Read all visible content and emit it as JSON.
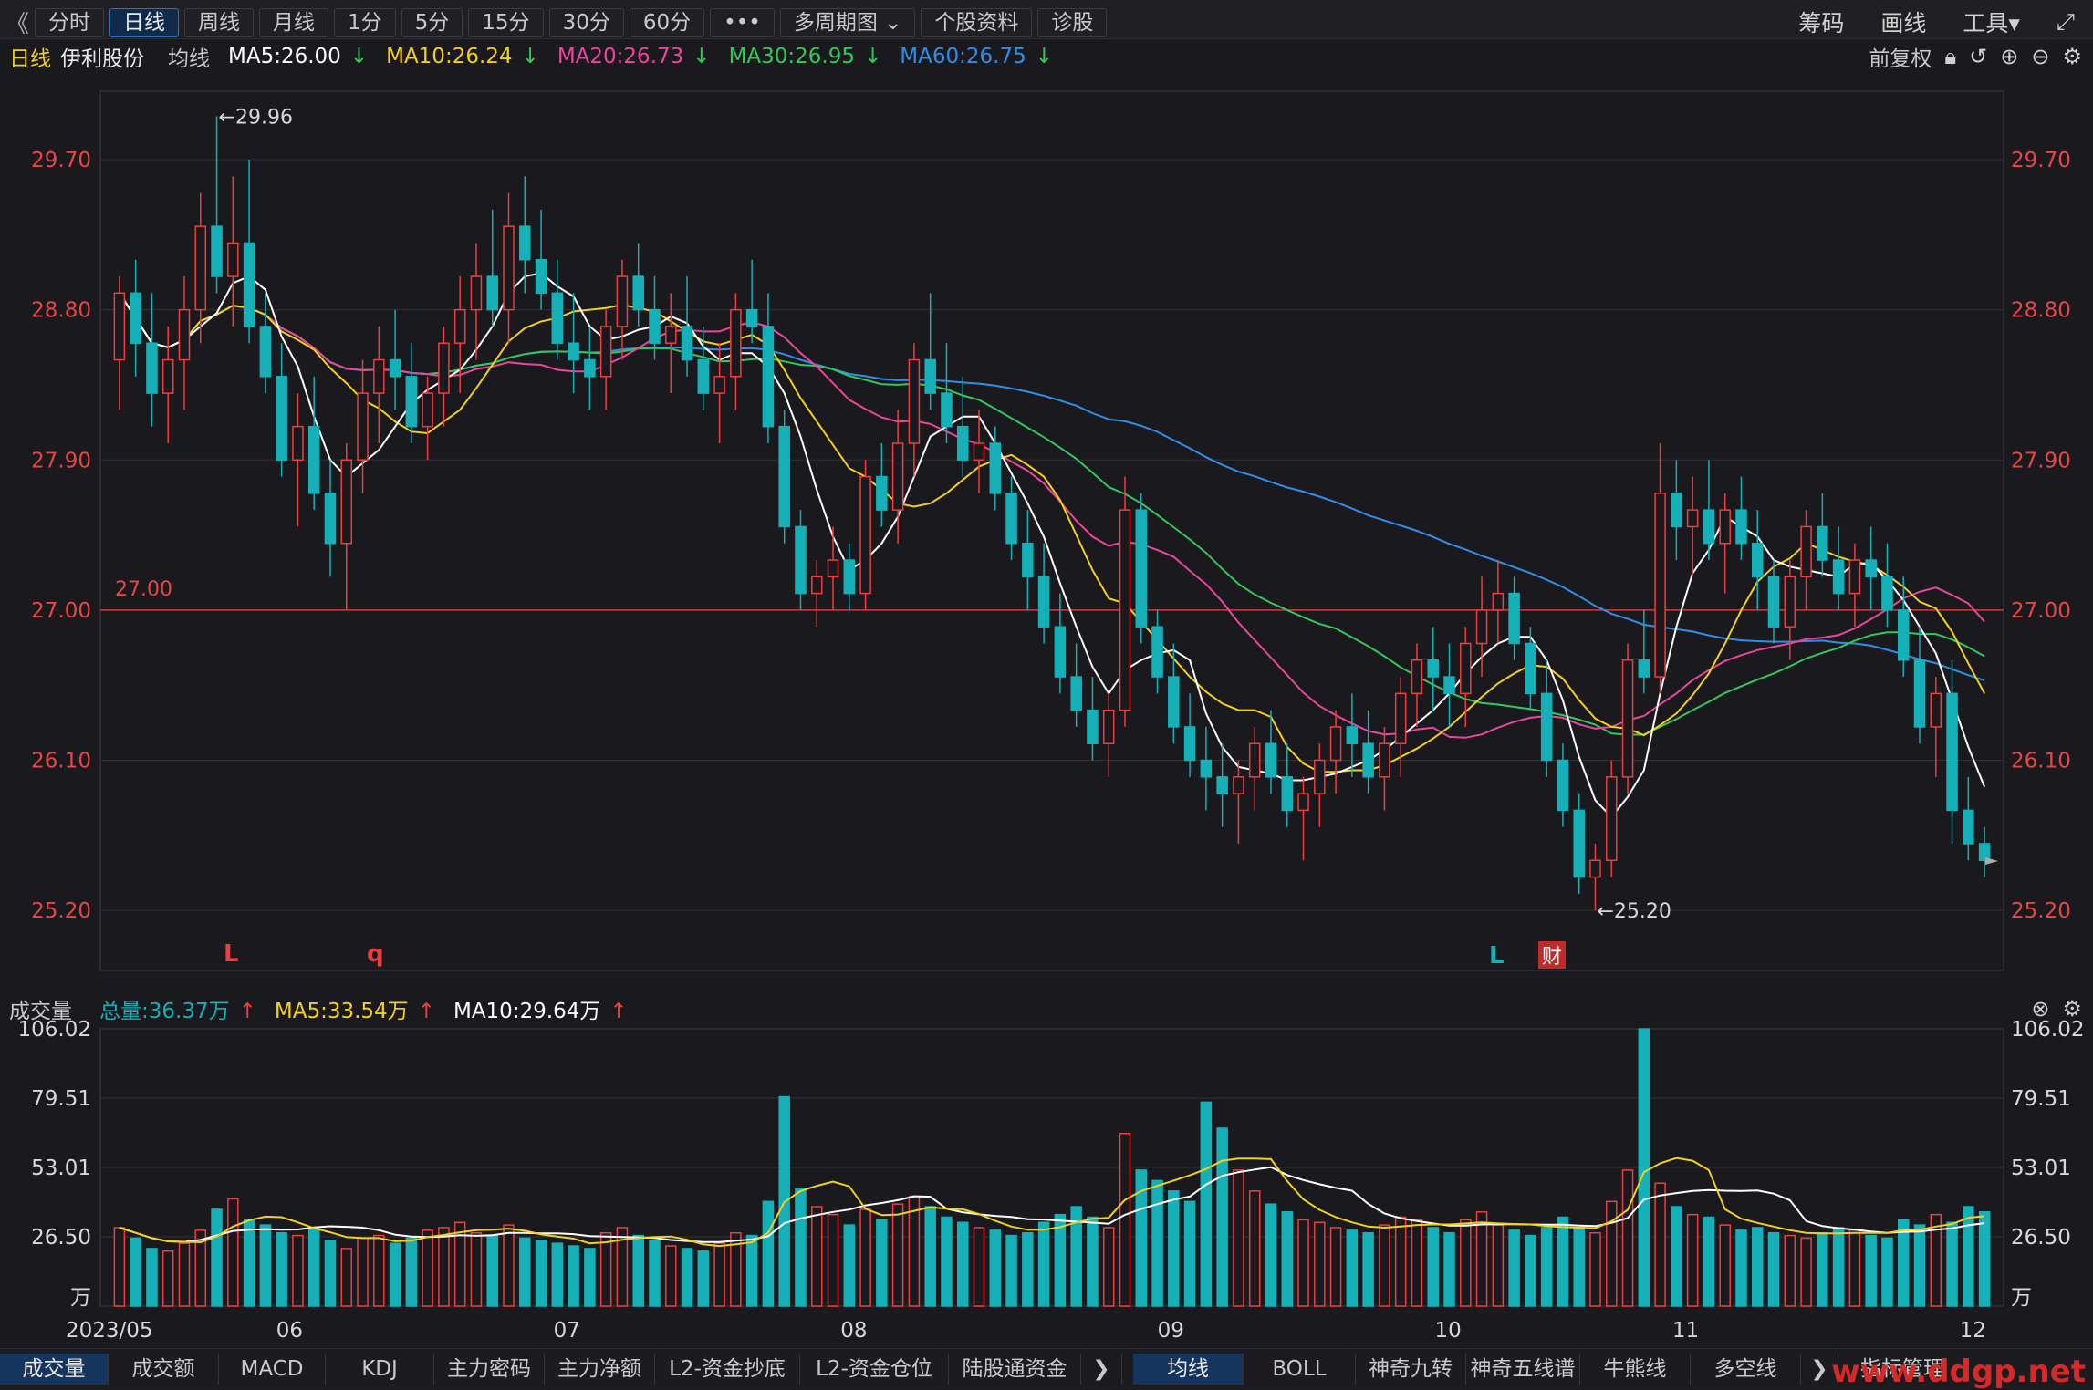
{
  "toolbar": {
    "back_icon": "《",
    "periods": [
      "分时",
      "日线",
      "周线",
      "月线",
      "1分",
      "5分",
      "15分",
      "30分",
      "60分"
    ],
    "active_period": "日线",
    "more_icon": "•••",
    "multi": "多周期图",
    "profile": "个股资料",
    "diagnose": "诊股",
    "right": [
      "筹码",
      "画线",
      "工具▾"
    ],
    "expand_icon": "⤢"
  },
  "info": {
    "period": "日线",
    "stock": "伊利股份",
    "ma_label": "均线",
    "ma5": "MA5:26.00",
    "ma10": "MA10:26.24",
    "ma20": "MA20:26.73",
    "ma30": "MA30:26.95",
    "ma60": "MA60:26.75",
    "arrow": "↓",
    "adjust": "前复权",
    "icons": [
      "lock-icon",
      "undo-icon",
      "plus-circle-icon",
      "minus-circle-icon",
      "gear-icon"
    ]
  },
  "volume_info": {
    "label": "成交量",
    "total": "总量:36.37万",
    "ma5": "MA5:33.54万",
    "ma10": "MA10:29.64万",
    "arrow": "↑"
  },
  "price_axis": {
    "ticks": [
      "29.70",
      "28.80",
      "27.90",
      "27.00",
      "26.10",
      "25.20"
    ],
    "values": [
      29.7,
      28.8,
      27.9,
      27.0,
      26.1,
      25.2
    ],
    "ymin": 24.84,
    "ymax": 30.11
  },
  "price_line": {
    "value": 27.0,
    "label": "27.00"
  },
  "annotations": {
    "high": "←29.96",
    "low": "←25.20",
    "markers": [
      "L",
      "q",
      "L",
      "财"
    ]
  },
  "volume_axis": {
    "ticks": [
      "106.02",
      "79.51",
      "53.01",
      "26.50",
      "万"
    ],
    "values": [
      106.02,
      79.51,
      53.01,
      26.5
    ],
    "max": 106.02
  },
  "x_axis": {
    "labels": [
      "2023/05",
      "06",
      "07",
      "08",
      "09",
      "10",
      "11",
      "12"
    ]
  },
  "bottom_tabs": {
    "left": [
      "成交量",
      "成交额",
      "MACD",
      "KDJ",
      "主力密码",
      "主力净额",
      "L2-资金抄底",
      "L2-资金仓位",
      "陆股通资金"
    ],
    "right": [
      "均线",
      "BOLL",
      "神奇九转",
      "神奇五线谱",
      "牛熊线",
      "多空线"
    ],
    "more": "指标管理",
    "arrow": "❯"
  },
  "watermark": "www.ddgp.net",
  "colors": {
    "up": "#f03d3d",
    "down": "#15b0b8",
    "ma5": "#ffffff",
    "ma10": "#f2d01c",
    "ma20": "#e9479c",
    "ma30": "#33c85a",
    "ma60": "#2f8fe8",
    "grid": "#303036",
    "axis": "#e84545"
  },
  "chart_data": {
    "type": "candlestick",
    "title": "伊利股份 日线",
    "ohlc": [
      [
        28.5,
        29.0,
        28.2,
        28.9
      ],
      [
        28.9,
        29.1,
        28.4,
        28.6
      ],
      [
        28.6,
        28.9,
        28.1,
        28.3
      ],
      [
        28.3,
        28.7,
        28.0,
        28.5
      ],
      [
        28.5,
        29.0,
        28.2,
        28.8
      ],
      [
        28.8,
        29.5,
        28.6,
        29.3
      ],
      [
        29.3,
        29.96,
        28.9,
        29.0
      ],
      [
        29.0,
        29.6,
        28.7,
        29.2
      ],
      [
        29.2,
        29.7,
        28.6,
        28.7
      ],
      [
        28.7,
        28.9,
        28.3,
        28.4
      ],
      [
        28.4,
        28.6,
        27.8,
        27.9
      ],
      [
        27.9,
        28.3,
        27.5,
        28.1
      ],
      [
        28.1,
        28.4,
        27.6,
        27.7
      ],
      [
        27.7,
        27.9,
        27.2,
        27.4
      ],
      [
        27.4,
        28.0,
        27.0,
        27.9
      ],
      [
        27.9,
        28.5,
        27.7,
        28.3
      ],
      [
        28.3,
        28.7,
        28.0,
        28.5
      ],
      [
        28.5,
        28.8,
        28.2,
        28.4
      ],
      [
        28.4,
        28.6,
        28.0,
        28.1
      ],
      [
        28.1,
        28.4,
        27.9,
        28.3
      ],
      [
        28.3,
        28.7,
        28.1,
        28.6
      ],
      [
        28.6,
        29.0,
        28.3,
        28.8
      ],
      [
        28.8,
        29.2,
        28.5,
        29.0
      ],
      [
        29.0,
        29.4,
        28.7,
        28.8
      ],
      [
        28.8,
        29.5,
        28.6,
        29.3
      ],
      [
        29.3,
        29.6,
        28.9,
        29.1
      ],
      [
        29.1,
        29.4,
        28.8,
        28.9
      ],
      [
        28.9,
        29.1,
        28.5,
        28.6
      ],
      [
        28.6,
        28.9,
        28.3,
        28.5
      ],
      [
        28.5,
        28.7,
        28.2,
        28.4
      ],
      [
        28.4,
        28.8,
        28.2,
        28.7
      ],
      [
        28.7,
        29.1,
        28.5,
        29.0
      ],
      [
        29.0,
        29.2,
        28.7,
        28.8
      ],
      [
        28.8,
        29.0,
        28.5,
        28.6
      ],
      [
        28.6,
        28.9,
        28.3,
        28.7
      ],
      [
        28.7,
        29.0,
        28.4,
        28.5
      ],
      [
        28.5,
        28.7,
        28.2,
        28.3
      ],
      [
        28.3,
        28.6,
        28.0,
        28.4
      ],
      [
        28.4,
        28.9,
        28.2,
        28.8
      ],
      [
        28.8,
        29.1,
        28.6,
        28.7
      ],
      [
        28.7,
        28.9,
        28.0,
        28.1
      ],
      [
        28.1,
        28.2,
        27.4,
        27.5
      ],
      [
        27.5,
        27.6,
        27.0,
        27.1
      ],
      [
        27.1,
        27.3,
        26.9,
        27.2
      ],
      [
        27.2,
        27.5,
        27.0,
        27.3
      ],
      [
        27.3,
        27.4,
        27.0,
        27.1
      ],
      [
        27.1,
        27.9,
        27.0,
        27.8
      ],
      [
        27.8,
        28.0,
        27.5,
        27.6
      ],
      [
        27.6,
        28.2,
        27.4,
        28.0
      ],
      [
        28.0,
        28.6,
        27.8,
        28.5
      ],
      [
        28.5,
        28.9,
        28.2,
        28.3
      ],
      [
        28.3,
        28.6,
        28.0,
        28.1
      ],
      [
        28.1,
        28.4,
        27.8,
        27.9
      ],
      [
        27.9,
        28.2,
        27.7,
        28.0
      ],
      [
        28.0,
        28.1,
        27.6,
        27.7
      ],
      [
        27.7,
        27.8,
        27.3,
        27.4
      ],
      [
        27.4,
        27.6,
        27.0,
        27.2
      ],
      [
        27.2,
        27.4,
        26.8,
        26.9
      ],
      [
        26.9,
        27.1,
        26.5,
        26.6
      ],
      [
        26.6,
        26.8,
        26.3,
        26.4
      ],
      [
        26.4,
        26.6,
        26.1,
        26.2
      ],
      [
        26.2,
        26.5,
        26.0,
        26.4
      ],
      [
        26.4,
        27.8,
        26.3,
        27.6
      ],
      [
        27.6,
        27.7,
        26.8,
        26.9
      ],
      [
        26.9,
        27.0,
        26.5,
        26.6
      ],
      [
        26.6,
        26.8,
        26.2,
        26.3
      ],
      [
        26.3,
        26.5,
        26.0,
        26.1
      ],
      [
        26.1,
        26.3,
        25.8,
        26.0
      ],
      [
        26.0,
        26.2,
        25.7,
        25.9
      ],
      [
        25.9,
        26.1,
        25.6,
        26.0
      ],
      [
        26.0,
        26.3,
        25.8,
        26.2
      ],
      [
        26.2,
        26.4,
        25.9,
        26.0
      ],
      [
        26.0,
        26.2,
        25.7,
        25.8
      ],
      [
        25.8,
        26.0,
        25.5,
        25.9
      ],
      [
        25.9,
        26.2,
        25.7,
        26.1
      ],
      [
        26.1,
        26.4,
        25.9,
        26.3
      ],
      [
        26.3,
        26.5,
        26.0,
        26.2
      ],
      [
        26.2,
        26.4,
        25.9,
        26.0
      ],
      [
        26.0,
        26.3,
        25.8,
        26.2
      ],
      [
        26.2,
        26.6,
        26.0,
        26.5
      ],
      [
        26.5,
        26.8,
        26.3,
        26.7
      ],
      [
        26.7,
        26.9,
        26.4,
        26.6
      ],
      [
        26.6,
        26.8,
        26.3,
        26.5
      ],
      [
        26.5,
        26.9,
        26.3,
        26.8
      ],
      [
        26.8,
        27.2,
        26.6,
        27.0
      ],
      [
        27.0,
        27.3,
        26.8,
        27.1
      ],
      [
        27.1,
        27.2,
        26.7,
        26.8
      ],
      [
        26.8,
        26.9,
        26.4,
        26.5
      ],
      [
        26.5,
        26.7,
        26.0,
        26.1
      ],
      [
        26.1,
        26.2,
        25.7,
        25.8
      ],
      [
        25.8,
        25.9,
        25.3,
        25.4
      ],
      [
        25.4,
        25.6,
        25.2,
        25.5
      ],
      [
        25.5,
        26.1,
        25.4,
        26.0
      ],
      [
        26.0,
        26.8,
        25.9,
        26.7
      ],
      [
        26.7,
        27.0,
        26.5,
        26.6
      ],
      [
        26.6,
        28.0,
        26.5,
        27.7
      ],
      [
        27.7,
        27.9,
        27.3,
        27.5
      ],
      [
        27.5,
        27.8,
        27.2,
        27.6
      ],
      [
        27.6,
        27.9,
        27.3,
        27.4
      ],
      [
        27.4,
        27.7,
        27.1,
        27.6
      ],
      [
        27.6,
        27.8,
        27.3,
        27.4
      ],
      [
        27.4,
        27.6,
        27.0,
        27.2
      ],
      [
        27.2,
        27.3,
        26.8,
        26.9
      ],
      [
        26.9,
        27.3,
        26.7,
        27.2
      ],
      [
        27.2,
        27.6,
        27.0,
        27.5
      ],
      [
        27.5,
        27.7,
        27.2,
        27.3
      ],
      [
        27.3,
        27.5,
        27.0,
        27.1
      ],
      [
        27.1,
        27.4,
        26.9,
        27.3
      ],
      [
        27.3,
        27.5,
        27.0,
        27.2
      ],
      [
        27.2,
        27.4,
        26.9,
        27.0
      ],
      [
        27.0,
        27.2,
        26.6,
        26.7
      ],
      [
        26.7,
        26.9,
        26.2,
        26.3
      ],
      [
        26.3,
        26.6,
        26.0,
        26.5
      ],
      [
        26.5,
        26.7,
        25.6,
        25.8
      ],
      [
        25.8,
        26.0,
        25.5,
        25.6
      ],
      [
        25.6,
        25.7,
        25.4,
        25.5
      ]
    ],
    "volume": [
      30,
      26,
      22,
      21,
      24,
      29,
      37,
      41,
      33,
      31,
      28,
      27,
      30,
      25,
      22,
      26,
      27,
      24,
      26,
      29,
      30,
      32,
      28,
      27,
      31,
      26,
      25,
      24,
      23,
      22,
      28,
      30,
      27,
      25,
      23,
      22,
      21,
      24,
      28,
      27,
      40,
      80,
      45,
      38,
      35,
      31,
      37,
      33,
      39,
      42,
      38,
      34,
      32,
      30,
      29,
      27,
      28,
      32,
      35,
      38,
      34,
      30,
      66,
      52,
      48,
      44,
      40,
      78,
      68,
      52,
      44,
      39,
      36,
      33,
      32,
      30,
      29,
      28,
      31,
      34,
      33,
      30,
      28,
      33,
      36,
      31,
      29,
      27,
      30,
      34,
      30,
      28,
      40,
      52,
      106,
      47,
      38,
      35,
      34,
      31,
      29,
      30,
      28,
      27,
      26,
      28,
      30,
      29,
      27,
      26,
      33,
      31,
      35,
      32,
      38,
      36
    ],
    "ma": {
      "MA5": 26.0,
      "MA10": 26.24,
      "MA20": 26.73,
      "MA30": 26.95,
      "MA60": 26.75
    },
    "ylim": [
      24.84,
      30.11
    ],
    "volume_ylim": [
      0,
      106.02
    ]
  }
}
